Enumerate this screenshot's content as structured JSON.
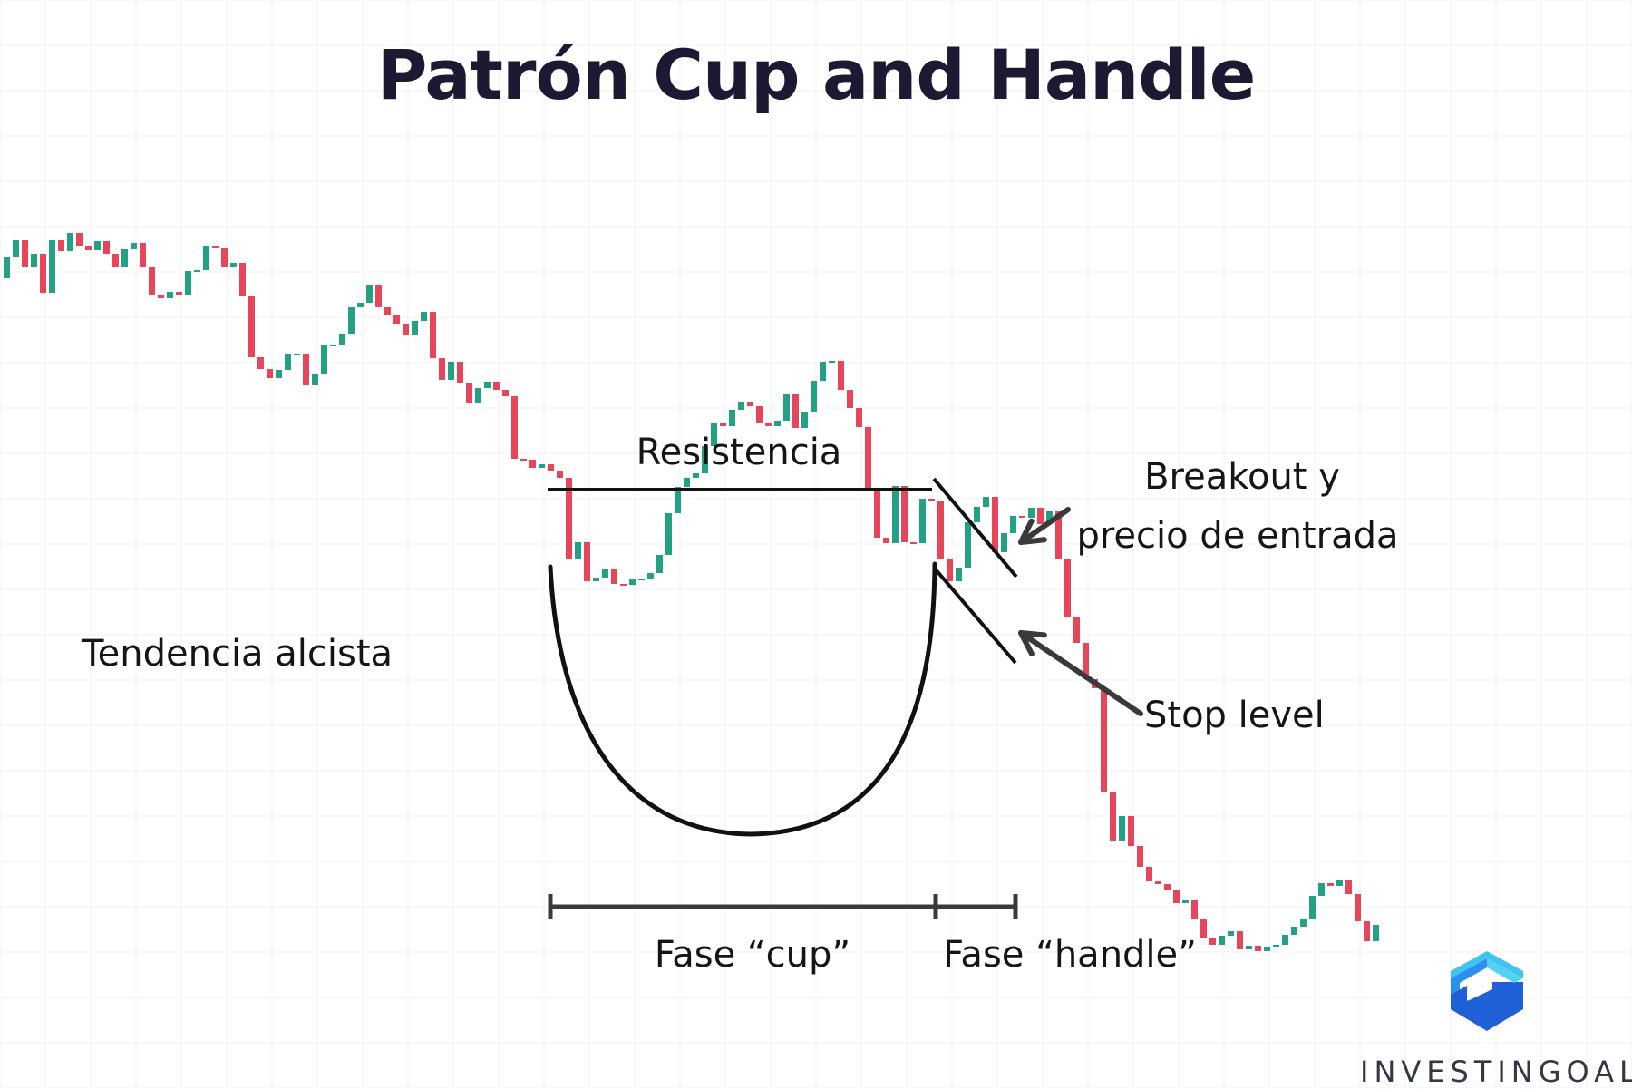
{
  "title": "Patrón Cup and Handle",
  "labels": {
    "uptrend": "Tendencia alcista",
    "resistance": "Resistencia",
    "breakout_line1": "Breakout y",
    "breakout_line2": "precio de entrada",
    "stop": "Stop level",
    "cup_phase": "Fase “cup”",
    "handle_phase": "Fase “handle”"
  },
  "brand": {
    "name": "INVESTINGOAL",
    "logo_icon": "investingoal-logo-icon"
  },
  "colors": {
    "bullish": "#22a184",
    "bearish": "#e6455a",
    "annotation": "#111111",
    "arrow": "#3a3a3a",
    "title": "#1c1a33",
    "logo_light": "#3fc4f0",
    "logo_dark": "#1f5fd8"
  },
  "candles": [
    [
      893,
      917,
      922,
      882
    ],
    [
      917,
      935,
      939,
      898
    ],
    [
      935,
      905,
      957,
      899
    ],
    [
      905,
      920,
      931,
      870
    ],
    [
      920,
      877,
      939,
      864
    ],
    [
      877,
      935,
      940,
      875
    ],
    [
      935,
      923,
      940,
      899
    ],
    [
      923,
      943,
      947,
      899
    ],
    [
      943,
      929,
      950,
      919
    ],
    [
      929,
      924,
      935,
      920
    ],
    [
      924,
      934,
      939,
      911
    ],
    [
      934,
      920,
      946,
      905
    ],
    [
      920,
      905,
      923,
      895
    ],
    [
      905,
      925,
      929,
      901
    ],
    [
      925,
      932,
      937,
      901
    ],
    [
      932,
      905,
      957,
      857
    ],
    [
      905,
      875,
      1008,
      870
    ],
    [
      875,
      871,
      880,
      860
    ],
    [
      871,
      878,
      886,
      856
    ],
    [
      878,
      875,
      892,
      865
    ],
    [
      875,
      901,
      911,
      859
    ],
    [
      901,
      902,
      905,
      885
    ],
    [
      902,
      929,
      936,
      892
    ],
    [
      929,
      926,
      942,
      911
    ],
    [
      926,
      905,
      947,
      893
    ],
    [
      905,
      910,
      922,
      902
    ],
    [
      910,
      874,
      918,
      845
    ],
    [
      874,
      806,
      883,
      803
    ],
    [
      806,
      793,
      835,
      785
    ],
    [
      793,
      783,
      801,
      768
    ],
    [
      783,
      792,
      810,
      780
    ],
    [
      792,
      810,
      811,
      782
    ],
    [
      810,
      810,
      815,
      780
    ],
    [
      810,
      775,
      812,
      775
    ],
    [
      775,
      787,
      801,
      768
    ],
    [
      787,
      820,
      822,
      781
    ],
    [
      820,
      820,
      829,
      794
    ],
    [
      820,
      832,
      844,
      820
    ],
    [
      832,
      861,
      869,
      818
    ],
    [
      861,
      866,
      869,
      824
    ],
    [
      866,
      886,
      892,
      860
    ],
    [
      886,
      861,
      891,
      839
    ],
    [
      861,
      853,
      867,
      841
    ],
    [
      853,
      843,
      868,
      808
    ],
    [
      843,
      831,
      874,
      810
    ],
    [
      831,
      846,
      865,
      822
    ],
    [
      846,
      856,
      888,
      828
    ],
    [
      856,
      805,
      864,
      793
    ],
    [
      805,
      781,
      808,
      778
    ],
    [
      781,
      801,
      803,
      777
    ],
    [
      801,
      778,
      813,
      771
    ],
    [
      778,
      756,
      784,
      747
    ],
    [
      756,
      772,
      778,
      767
    ],
    [
      772,
      779,
      779,
      772
    ],
    [
      779,
      770,
      780,
      766
    ],
    [
      770,
      763,
      768,
      728
    ],
    [
      763,
      694,
      706,
      660
    ],
    [
      694,
      693,
      702,
      638
    ],
    [
      693,
      684,
      689,
      658
    ],
    [
      684,
      688,
      696,
      681
    ],
    [
      688,
      681,
      695,
      666
    ],
    [
      681,
      673,
      680,
      646
    ],
    [
      673,
      583,
      589,
      573
    ],
    [
      583,
      602,
      607,
      589
    ],
    [
      602,
      559,
      600,
      556
    ],
    [
      559,
      563,
      570,
      551
    ],
    [
      563,
      572,
      573,
      560
    ],
    [
      572,
      556,
      573,
      560
    ],
    [
      556,
      555,
      562,
      534
    ],
    [
      555,
      561,
      565,
      553
    ],
    [
      561,
      562,
      565,
      554
    ],
    [
      562,
      568,
      568,
      556
    ],
    [
      568,
      588,
      601,
      585
    ],
    [
      588,
      634,
      650,
      613
    ],
    [
      634,
      663,
      667,
      637
    ],
    [
      663,
      673,
      677,
      659
    ],
    [
      673,
      678,
      701,
      659
    ],
    [
      678,
      708,
      708,
      665
    ],
    [
      708,
      734,
      738,
      704
    ],
    [
      734,
      730,
      739,
      714
    ],
    [
      730,
      748,
      761,
      706
    ],
    [
      748,
      757,
      765,
      712
    ],
    [
      757,
      752,
      757,
      706
    ],
    [
      752,
      733,
      745,
      698
    ],
    [
      733,
      730,
      759,
      697
    ],
    [
      730,
      736,
      778,
      715
    ],
    [
      736,
      766,
      770,
      721
    ],
    [
      766,
      728,
      766,
      734
    ],
    [
      728,
      746,
      749,
      723
    ],
    [
      746,
      780,
      789,
      731
    ],
    [
      780,
      801,
      806,
      768
    ],
    [
      801,
      802,
      808,
      801
    ],
    [
      802,
      770,
      784,
      760
    ],
    [
      770,
      750,
      779,
      728
    ],
    [
      750,
      729,
      733,
      715
    ],
    [
      729,
      661,
      664,
      640
    ],
    [
      661,
      607,
      617,
      573
    ],
    [
      607,
      601,
      623,
      590
    ],
    [
      601,
      664,
      666,
      601
    ],
    [
      664,
      602,
      651,
      588
    ],
    [
      602,
      601,
      628,
      561
    ],
    [
      601,
      650,
      667,
      558
    ],
    [
      650,
      648,
      658,
      627
    ],
    [
      648,
      584,
      600,
      570
    ],
    [
      584,
      559,
      574,
      556
    ],
    [
      559,
      574,
      578,
      568
    ],
    [
      574,
      624,
      624,
      560
    ],
    [
      624,
      641,
      644,
      624
    ],
    [
      641,
      652,
      652,
      597
    ],
    [
      652,
      591,
      591,
      571
    ],
    [
      591,
      612,
      620,
      578
    ],
    [
      612,
      631,
      634,
      596
    ],
    [
      631,
      629,
      651,
      613
    ],
    [
      629,
      640,
      646,
      615
    ],
    [
      640,
      622,
      631,
      618
    ],
    [
      622,
      636,
      637,
      612
    ],
    [
      636,
      584,
      600,
      568
    ],
    [
      584,
      519,
      532,
      512
    ],
    [
      519,
      491,
      491,
      456
    ],
    [
      491,
      451,
      450,
      386
    ],
    [
      451,
      441,
      473,
      432
    ],
    [
      441,
      327,
      341,
      317
    ],
    [
      327,
      272,
      282,
      258
    ],
    [
      272,
      300,
      300,
      254
    ],
    [
      300,
      267,
      268,
      246
    ],
    [
      267,
      244,
      249,
      210
    ],
    [
      244,
      228,
      248,
      208
    ],
    [
      228,
      225,
      247,
      200
    ],
    [
      225,
      218,
      233,
      220
    ],
    [
      218,
      204,
      207,
      174
    ],
    [
      204,
      207,
      213,
      186
    ],
    [
      207,
      186,
      186,
      163
    ],
    [
      186,
      166,
      173,
      150
    ],
    [
      166,
      158,
      165,
      147
    ],
    [
      158,
      168,
      178,
      155
    ],
    [
      168,
      173,
      198,
      138
    ],
    [
      173,
      153,
      168,
      150
    ],
    [
      153,
      157,
      164,
      147
    ],
    [
      157,
      151,
      170,
      142
    ],
    [
      151,
      156,
      158,
      144
    ],
    [
      156,
      158,
      158,
      141
    ],
    [
      158,
      169,
      171,
      147
    ],
    [
      169,
      178,
      179,
      159
    ],
    [
      178,
      187,
      197,
      172
    ],
    [
      187,
      212,
      221,
      181
    ],
    [
      212,
      226,
      228,
      197
    ],
    [
      226,
      223,
      224,
      199
    ],
    [
      223,
      230,
      231,
      200
    ],
    [
      230,
      214,
      214,
      179
    ],
    [
      214,
      184,
      185,
      162
    ],
    [
      184,
      162,
      171,
      146
    ],
    [
      162,
      180,
      198,
      127
    ]
  ],
  "annotations": {
    "resistance_level": 780,
    "cup_rim_level": 756,
    "handle_upper": [
      770,
      804
    ],
    "handle_lower": [
      755,
      710
    ],
    "span_cup": [
      "C",
      "H"
    ],
    "span_handle": [
      "H",
      "B"
    ]
  }
}
